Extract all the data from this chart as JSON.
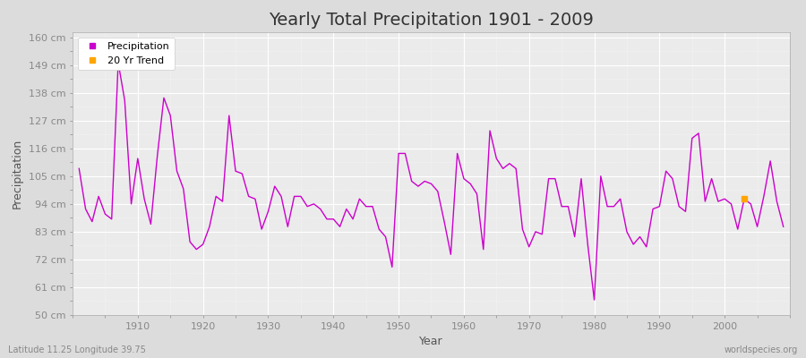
{
  "title": "Yearly Total Precipitation 1901 - 2009",
  "xlabel": "Year",
  "ylabel": "Precipitation",
  "subtitle_left": "Latitude 11.25 Longitude 39.75",
  "subtitle_right": "worldspecies.org",
  "ylim": [
    50,
    162
  ],
  "yticks": [
    50,
    61,
    72,
    83,
    94,
    105,
    116,
    127,
    138,
    149,
    160
  ],
  "ytick_labels": [
    "50 cm",
    "61 cm",
    "72 cm",
    "83 cm",
    "94 cm",
    "105 cm",
    "116 cm",
    "127 cm",
    "138 cm",
    "149 cm",
    "160 cm"
  ],
  "xticks": [
    1910,
    1920,
    1930,
    1940,
    1950,
    1960,
    1970,
    1980,
    1990,
    2000
  ],
  "line_color": "#cc00cc",
  "trend_color": "#ffa500",
  "bg_color": "#dcdcdc",
  "plot_bg_color": "#ebebeb",
  "grid_color": "#ffffff",
  "years": [
    1901,
    1902,
    1903,
    1904,
    1905,
    1906,
    1907,
    1908,
    1909,
    1910,
    1911,
    1912,
    1913,
    1914,
    1915,
    1916,
    1917,
    1918,
    1919,
    1920,
    1921,
    1922,
    1923,
    1924,
    1925,
    1926,
    1927,
    1928,
    1929,
    1930,
    1931,
    1932,
    1933,
    1934,
    1935,
    1936,
    1937,
    1938,
    1939,
    1940,
    1941,
    1942,
    1943,
    1944,
    1945,
    1946,
    1947,
    1948,
    1949,
    1950,
    1951,
    1952,
    1953,
    1954,
    1955,
    1956,
    1957,
    1958,
    1959,
    1960,
    1961,
    1962,
    1963,
    1964,
    1965,
    1966,
    1967,
    1968,
    1969,
    1970,
    1971,
    1972,
    1973,
    1974,
    1975,
    1976,
    1977,
    1978,
    1979,
    1980,
    1981,
    1982,
    1983,
    1984,
    1985,
    1986,
    1987,
    1988,
    1989,
    1990,
    1991,
    1992,
    1993,
    1994,
    1995,
    1996,
    1997,
    1998,
    1999,
    2000,
    2001,
    2002,
    2003,
    2004,
    2005,
    2006,
    2007,
    2008,
    2009
  ],
  "precip": [
    108,
    92,
    87,
    97,
    90,
    88,
    150,
    135,
    94,
    112,
    96,
    86,
    113,
    136,
    129,
    107,
    100,
    79,
    76,
    78,
    85,
    97,
    95,
    129,
    107,
    106,
    97,
    96,
    84,
    91,
    101,
    97,
    85,
    97,
    97,
    93,
    94,
    92,
    88,
    88,
    85,
    92,
    88,
    96,
    93,
    93,
    84,
    81,
    69,
    114,
    114,
    103,
    101,
    103,
    102,
    99,
    87,
    74,
    114,
    104,
    102,
    98,
    76,
    123,
    112,
    108,
    110,
    108,
    84,
    77,
    83,
    82,
    104,
    104,
    93,
    93,
    81,
    104,
    78,
    56,
    105,
    93,
    93,
    96,
    83,
    78,
    81,
    77,
    92,
    93,
    107,
    104,
    93,
    91,
    120,
    122,
    95,
    104,
    95,
    96,
    94,
    84,
    96,
    94,
    85,
    97,
    111,
    95,
    85
  ],
  "trend_years": [
    2003
  ],
  "trend_values": [
    96
  ],
  "title_fontsize": 14,
  "axis_label_fontsize": 9,
  "tick_fontsize": 8
}
